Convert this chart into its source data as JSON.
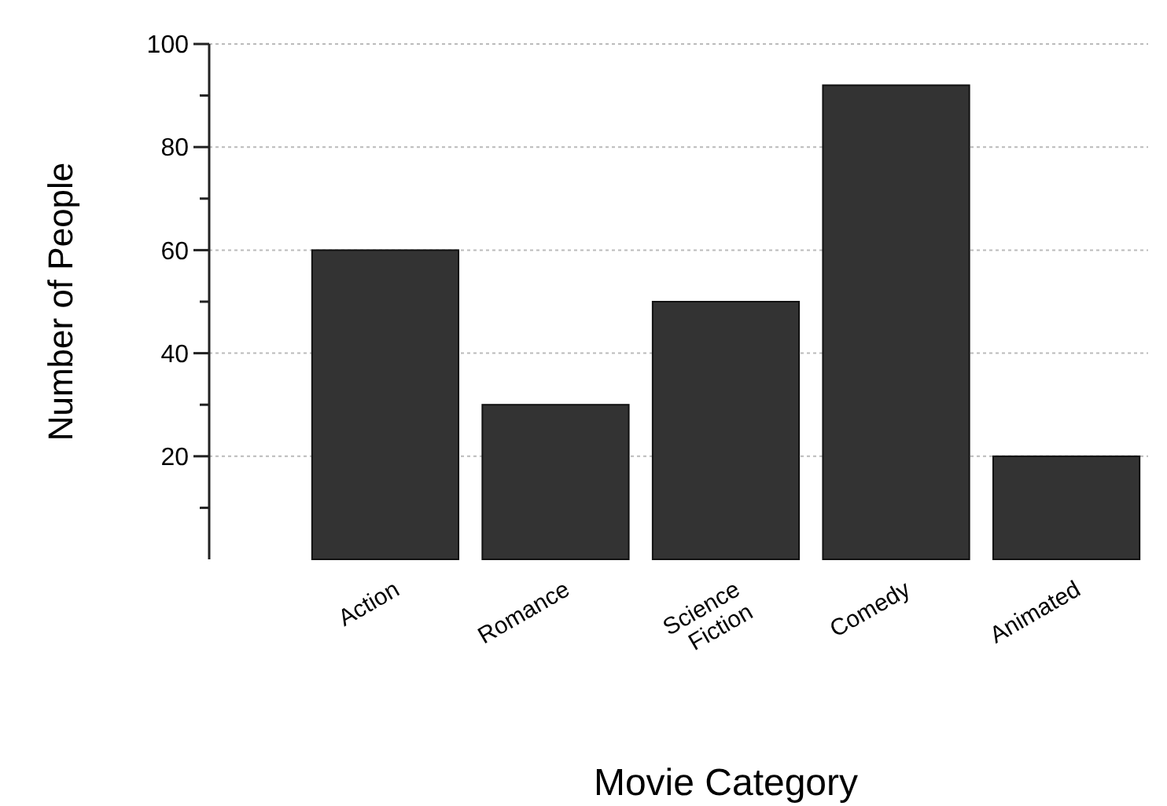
{
  "chart_data": {
    "type": "bar",
    "xlabel": "Movie Category",
    "ylabel": "Number of People",
    "categories": [
      "Action",
      "Romance",
      "Science Fiction",
      "Comedy",
      "Animated"
    ],
    "values": [
      60,
      30,
      50,
      92,
      20
    ],
    "color": "#333333",
    "ylim": [
      0,
      100
    ],
    "yticks": [
      {
        "value": 10,
        "label": null
      },
      20,
      {
        "value": 30,
        "label": null
      },
      40,
      {
        "value": 50,
        "label": null
      },
      60,
      {
        "value": 70,
        "label": null
      },
      80,
      {
        "value": 90,
        "label": null
      },
      100
    ],
    "grid": "y"
  }
}
